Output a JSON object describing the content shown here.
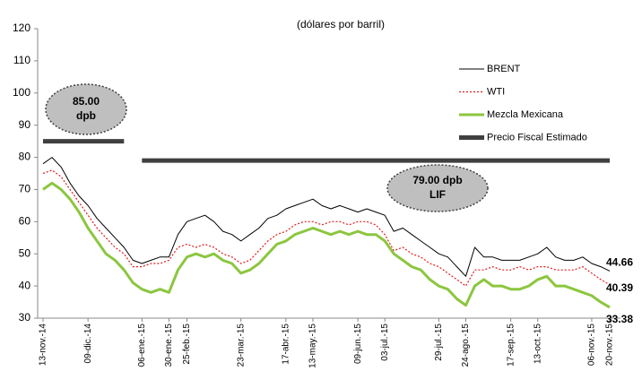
{
  "chart_data": {
    "type": "line",
    "title": "(dólares por barril)",
    "categories": [
      "13-nov.-14",
      null,
      null,
      null,
      null,
      "09-dic.-14",
      null,
      null,
      null,
      null,
      null,
      "06-ene.-15",
      null,
      null,
      "30-ene.-15",
      null,
      "25-feb.-15",
      null,
      null,
      null,
      null,
      null,
      "23-mar.-15",
      null,
      null,
      null,
      null,
      "17-abr.-15",
      null,
      null,
      "13-may.-15",
      null,
      null,
      null,
      null,
      "09-jun.-15",
      null,
      null,
      "03-jul.-15",
      null,
      null,
      null,
      null,
      null,
      "29-jul.-15",
      null,
      null,
      "24-ago.-15",
      null,
      null,
      null,
      null,
      "17-sep.-15",
      null,
      null,
      "13-oct.-15",
      null,
      null,
      null,
      null,
      null,
      "06-nov.-15",
      null,
      "20-nov.-15"
    ],
    "series": [
      {
        "name": "BRENT",
        "color": "#000000",
        "values": [
          78,
          80,
          77,
          72,
          68,
          65,
          61,
          58,
          55,
          52,
          48,
          47,
          48,
          49,
          49,
          56,
          60,
          61,
          62,
          60,
          57,
          56,
          54,
          56,
          58,
          61,
          62,
          64,
          65,
          66,
          67,
          65,
          64,
          65,
          64,
          63,
          64,
          63,
          62,
          57,
          58,
          56,
          54,
          52,
          50,
          49,
          46,
          43,
          52,
          49,
          49,
          48,
          48,
          48,
          49,
          50,
          52,
          49,
          48,
          48,
          49,
          47,
          46,
          44.66
        ]
      },
      {
        "name": "WTI",
        "color": "#e31a1c",
        "values": [
          75,
          76,
          74,
          70,
          66,
          62,
          58,
          55,
          52,
          50,
          46,
          46,
          47,
          47,
          48,
          52,
          53,
          52,
          53,
          52,
          50,
          49,
          47,
          48,
          51,
          54,
          56,
          57,
          59,
          60,
          60,
          59,
          60,
          60,
          59,
          60,
          60,
          59,
          56,
          51,
          52,
          50,
          49,
          47,
          46,
          44,
          42,
          40,
          45,
          45,
          46,
          45,
          45,
          46,
          45,
          46,
          46,
          45,
          45,
          45,
          46,
          44,
          42,
          40.39
        ]
      },
      {
        "name": "Mezcla Mexicana",
        "color": "#8cc63f",
        "values": [
          70,
          72,
          70,
          67,
          63,
          58,
          54,
          50,
          48,
          45,
          41,
          39,
          38,
          39,
          38,
          45,
          49,
          50,
          49,
          50,
          48,
          47,
          44,
          45,
          47,
          50,
          53,
          54,
          56,
          57,
          58,
          57,
          56,
          57,
          56,
          57,
          56,
          56,
          54,
          50,
          48,
          46,
          45,
          42,
          40,
          39,
          36,
          34,
          40,
          42,
          40,
          40,
          39,
          39,
          40,
          42,
          43,
          40,
          40,
          39,
          38,
          37,
          35,
          33.38
        ]
      },
      {
        "name": "Precio Fiscal Estimado",
        "color": "#404040",
        "values": [
          85,
          85,
          85,
          85,
          85,
          85,
          85,
          85,
          85,
          85,
          null,
          79,
          79,
          79,
          79,
          79,
          79,
          79,
          79,
          79,
          79,
          79,
          79,
          79,
          79,
          79,
          79,
          79,
          79,
          79,
          79,
          79,
          79,
          79,
          79,
          79,
          79,
          79,
          79,
          79,
          79,
          79,
          79,
          79,
          79,
          79,
          79,
          79,
          79,
          79,
          79,
          79,
          79,
          79,
          79,
          79,
          79,
          79,
          79,
          79,
          79,
          79,
          79,
          79
        ]
      }
    ],
    "annotations": [
      [
        "85.00",
        "dpb"
      ],
      [
        "79.00 dpb",
        "LIF"
      ]
    ],
    "ylim": [
      30,
      120
    ],
    "yticks": [
      30,
      40,
      50,
      60,
      70,
      80,
      90,
      100,
      110,
      120
    ],
    "grid": false,
    "legend": "upper right"
  }
}
